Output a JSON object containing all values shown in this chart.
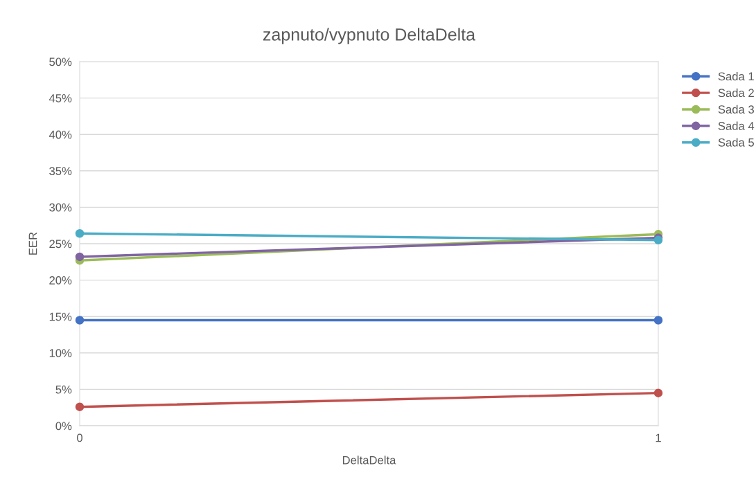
{
  "chart_data": {
    "type": "line",
    "title": "zapnuto/vypnuto DeltaDelta",
    "xlabel": "DeltaDelta",
    "ylabel": "EER",
    "x": [
      0,
      1
    ],
    "xlim": [
      0,
      1
    ],
    "xticks": [
      0,
      1
    ],
    "ylim": [
      0,
      50
    ],
    "yticks": [
      {
        "value": 0,
        "label": "0%"
      },
      {
        "value": 5,
        "label": "5%"
      },
      {
        "value": 10,
        "label": "10%"
      },
      {
        "value": 15,
        "label": "15%"
      },
      {
        "value": 20,
        "label": "20%"
      },
      {
        "value": 25,
        "label": "25%"
      },
      {
        "value": 30,
        "label": "30%"
      },
      {
        "value": 35,
        "label": "35%"
      },
      {
        "value": 40,
        "label": "40%"
      },
      {
        "value": 45,
        "label": "45%"
      },
      {
        "value": 50,
        "label": "50%"
      }
    ],
    "grid": "y",
    "legend": "right",
    "marker": "circle",
    "line_style": "solid",
    "series": [
      {
        "name": "Sada 1",
        "color": "#4472c4",
        "values": [
          14.5,
          14.5
        ]
      },
      {
        "name": "Sada 2",
        "color": "#c0504d",
        "values": [
          2.6,
          4.5
        ]
      },
      {
        "name": "Sada 3",
        "color": "#9bbb59",
        "values": [
          22.7,
          26.3
        ]
      },
      {
        "name": "Sada 4",
        "color": "#8064a2",
        "values": [
          23.2,
          25.8
        ]
      },
      {
        "name": "Sada 5",
        "color": "#4bacc6",
        "values": [
          26.4,
          25.5
        ]
      }
    ]
  }
}
